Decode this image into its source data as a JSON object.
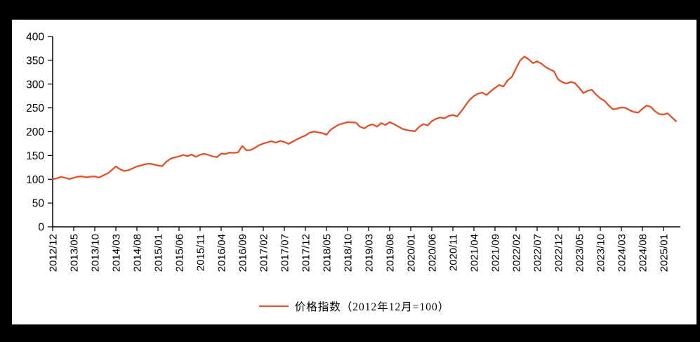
{
  "chart": {
    "legend_label": "价格指数（2012年12月=100）",
    "line_color": "#DF5229",
    "axis_color": "#000000",
    "background_frame_color": "#000000",
    "panel_color": "#ffffff"
  },
  "chart_data": {
    "type": "line",
    "title": "",
    "xlabel": "",
    "ylabel": "",
    "legend_position": "bottom",
    "grid": false,
    "ylim": [
      0,
      400
    ],
    "ytick_step": 50,
    "yticks": [
      "0",
      "50",
      "100",
      "150",
      "200",
      "250",
      "300",
      "350",
      "400"
    ],
    "xtick_every": 5,
    "xtick_labels": [
      "2012/12",
      "2013/05",
      "2013/10",
      "2014/03",
      "2014/08",
      "2015/01",
      "2015/06",
      "2015/11",
      "2016/04",
      "2016/09",
      "2017/02",
      "2017/07",
      "2017/12",
      "2018/05",
      "2018/10",
      "2019/03",
      "2019/08",
      "2020/01",
      "2020/06",
      "2020/11",
      "2021/04",
      "2021/09",
      "2022/02",
      "2022/07",
      "2022/12",
      "2023/05",
      "2023/10",
      "2024/03",
      "2024/08",
      "2025/01"
    ],
    "series": [
      {
        "name": "价格指数（2012年12月=100）",
        "color": "#DF5229",
        "x": [
          "2012/12",
          "2013/01",
          "2013/02",
          "2013/03",
          "2013/04",
          "2013/05",
          "2013/06",
          "2013/07",
          "2013/08",
          "2013/09",
          "2013/10",
          "2013/11",
          "2013/12",
          "2014/01",
          "2014/02",
          "2014/03",
          "2014/04",
          "2014/05",
          "2014/06",
          "2014/07",
          "2014/08",
          "2014/09",
          "2014/10",
          "2014/11",
          "2014/12",
          "2015/01",
          "2015/02",
          "2015/03",
          "2015/04",
          "2015/05",
          "2015/06",
          "2015/07",
          "2015/08",
          "2015/09",
          "2015/10",
          "2015/11",
          "2015/12",
          "2016/01",
          "2016/02",
          "2016/03",
          "2016/04",
          "2016/05",
          "2016/06",
          "2016/07",
          "2016/08",
          "2016/09",
          "2016/10",
          "2016/11",
          "2016/12",
          "2017/01",
          "2017/02",
          "2017/03",
          "2017/04",
          "2017/05",
          "2017/06",
          "2017/07",
          "2017/08",
          "2017/09",
          "2017/10",
          "2017/11",
          "2017/12",
          "2018/01",
          "2018/02",
          "2018/03",
          "2018/04",
          "2018/05",
          "2018/06",
          "2018/07",
          "2018/08",
          "2018/09",
          "2018/10",
          "2018/11",
          "2018/12",
          "2019/01",
          "2019/02",
          "2019/03",
          "2019/04",
          "2019/05",
          "2019/06",
          "2019/07",
          "2019/08",
          "2019/09",
          "2019/10",
          "2019/11",
          "2019/12",
          "2020/01",
          "2020/02",
          "2020/03",
          "2020/04",
          "2020/05",
          "2020/06",
          "2020/07",
          "2020/08",
          "2020/09",
          "2020/10",
          "2020/11",
          "2020/12",
          "2021/01",
          "2021/02",
          "2021/03",
          "2021/04",
          "2021/05",
          "2021/06",
          "2021/07",
          "2021/08",
          "2021/09",
          "2021/10",
          "2021/11",
          "2021/12",
          "2022/01",
          "2022/02",
          "2022/03",
          "2022/04",
          "2022/05",
          "2022/06",
          "2022/07",
          "2022/08",
          "2022/09",
          "2022/10",
          "2022/11",
          "2022/12",
          "2023/01",
          "2023/02",
          "2023/03",
          "2023/04",
          "2023/05",
          "2023/06",
          "2023/07",
          "2023/08",
          "2023/09",
          "2023/10",
          "2023/11",
          "2023/12",
          "2024/01",
          "2024/02",
          "2024/03",
          "2024/04",
          "2024/05",
          "2024/06",
          "2024/07",
          "2024/08",
          "2024/09",
          "2024/10",
          "2024/11",
          "2024/12",
          "2025/01",
          "2025/02",
          "2025/03",
          "2025/04"
        ],
        "values": [
          100,
          102,
          105,
          103,
          100.5,
          103,
          105.5,
          106,
          104,
          105.5,
          106,
          103.5,
          108,
          112,
          119,
          127,
          121,
          117.5,
          119,
          123,
          127,
          129,
          131.5,
          133,
          131,
          129,
          127.5,
          137,
          143,
          146,
          148,
          151,
          148.5,
          152,
          147,
          151.5,
          153.5,
          151,
          148,
          146.5,
          154,
          153,
          156,
          155.5,
          156.5,
          170,
          161,
          161.5,
          166,
          171.5,
          175,
          177.5,
          180,
          177,
          180.5,
          178.5,
          174.5,
          179,
          184,
          188,
          192,
          198,
          200,
          198.5,
          197,
          193.5,
          204,
          210,
          215,
          217.5,
          220,
          219.5,
          219,
          210,
          207,
          213,
          215.5,
          210.5,
          218,
          214,
          220,
          216,
          211,
          206,
          203.5,
          202,
          201,
          210,
          216,
          213,
          222,
          227,
          230,
          228,
          233,
          235,
          232,
          243,
          255,
          267,
          275,
          280,
          282,
          277,
          285,
          292,
          298,
          295,
          308,
          315,
          333,
          350,
          358,
          352,
          344,
          348,
          343,
          336,
          331,
          327,
          310,
          304,
          301,
          304.5,
          302,
          292,
          281,
          286,
          288,
          278,
          270,
          265,
          255,
          247,
          248.5,
          251,
          250,
          245,
          241.5,
          240,
          248,
          255,
          252,
          243,
          237,
          236,
          238.5,
          230,
          222
        ]
      }
    ]
  }
}
